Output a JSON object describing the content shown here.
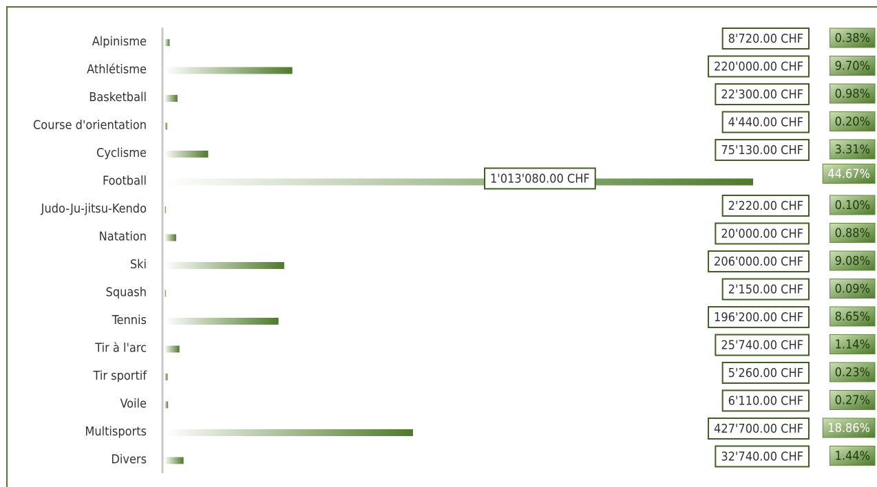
{
  "chart_data": {
    "type": "bar",
    "orientation": "horizontal",
    "categories": [
      "Alpinisme",
      "Athlétisme",
      "Basketball",
      "Course d'orientation",
      "Cyclisme",
      "Football",
      "Judo-Ju-jitsu-Kendo",
      "Natation",
      "Ski",
      "Squash",
      "Tennis",
      "Tir à l'arc",
      "Tir sportif",
      "Voile",
      "Multisports",
      "Divers"
    ],
    "values": [
      8720,
      220000,
      22300,
      4440,
      75130,
      1013080,
      2220,
      20000,
      206000,
      2150,
      196200,
      25740,
      5260,
      6110,
      427700,
      32740
    ],
    "value_labels": [
      "8'720.00 CHF",
      "220'000.00 CHF",
      "22'300.00 CHF",
      "4'440.00 CHF",
      "75'130.00 CHF",
      "1'013'080.00 CHF",
      "2'220.00 CHF",
      "20'000.00 CHF",
      "206'000.00 CHF",
      "2'150.00 CHF",
      "196'200.00 CHF",
      "25'740.00 CHF",
      "5'260.00 CHF",
      "6'110.00 CHF",
      "427'700.00 CHF",
      "32'740.00 CHF"
    ],
    "percent_labels": [
      "0.38%",
      "9.70%",
      "0.98%",
      "0.20%",
      "3.31%",
      "44.67%",
      "0.10%",
      "0.88%",
      "9.08%",
      "0.09%",
      "8.65%",
      "1.14%",
      "0.23%",
      "0.27%",
      "18.86%",
      "1.44%"
    ],
    "currency": "CHF",
    "grid": false,
    "legend": "none",
    "colors": {
      "bar_dark": "#4e7a2a",
      "bar_light": "#ffffff",
      "frame": "#4f7a2c",
      "label_border": "#3d5f1c",
      "axis": "#c8c8c8",
      "pct_light": "#cfe0b8",
      "pct_dark": "#4e7b2b"
    }
  }
}
